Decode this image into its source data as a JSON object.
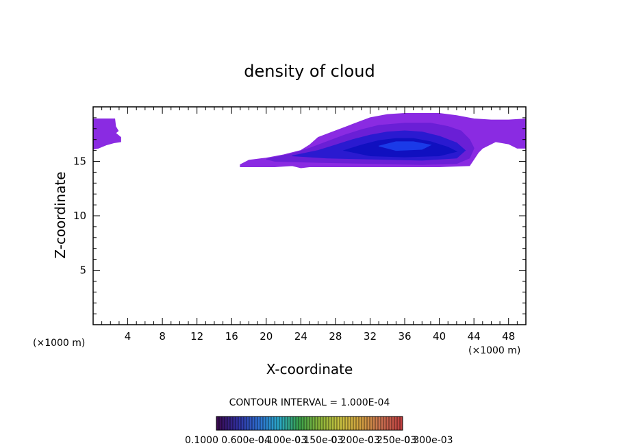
{
  "chart_data": {
    "type": "heatmap",
    "title": "density of cloud",
    "xlabel": "X-coordinate",
    "ylabel": "Z-coordinate",
    "x_unit": "(×1000 m)",
    "x_unit_right": "(×1000 m)",
    "xlim": [
      0,
      50
    ],
    "ylim": [
      0,
      20
    ],
    "x_ticks": [
      "4",
      "8",
      "12",
      "16",
      "20",
      "24",
      "28",
      "32",
      "36",
      "40",
      "44",
      "48"
    ],
    "x_tick_values": [
      4,
      8,
      12,
      16,
      20,
      24,
      28,
      32,
      36,
      40,
      44,
      48
    ],
    "y_ticks": [
      "5",
      "10",
      "15"
    ],
    "y_tick_values": [
      5,
      10,
      15
    ],
    "contour_interval_text": "CONTOUR INTERVAL = 1.000E-04",
    "colorbar_labels": [
      "0.1000",
      "0.600e-04",
      "0.100e-03",
      "0.150e-03",
      "0.200e-03",
      "0.250e-03",
      "0.300e-03"
    ],
    "colorbar_colors": [
      "#3a0a52",
      "#3030a0",
      "#2e6ed0",
      "#2aa8c8",
      "#3aa04a",
      "#8ab43a",
      "#c8c040",
      "#d0a040",
      "#c87050",
      "#c04040"
    ],
    "cloud_regions": [
      {
        "name": "left-edge-cloud",
        "color": "#8a2be2",
        "polygon": [
          [
            0,
            18.9
          ],
          [
            2.5,
            18.9
          ],
          [
            2.6,
            18.2
          ],
          [
            2.9,
            17.8
          ],
          [
            2.6,
            17.6
          ],
          [
            3.2,
            17.2
          ],
          [
            3.2,
            16.8
          ],
          [
            2.4,
            16.7
          ],
          [
            1.5,
            16.5
          ],
          [
            0.6,
            16.2
          ],
          [
            0,
            16.1
          ]
        ]
      },
      {
        "name": "outer-cloud-purple",
        "color": "#8a2be2",
        "polygon": [
          [
            17,
            14.7
          ],
          [
            18,
            15.1
          ],
          [
            20,
            15.3
          ],
          [
            22,
            15.6
          ],
          [
            24,
            16.0
          ],
          [
            25,
            16.5
          ],
          [
            26,
            17.2
          ],
          [
            28,
            17.8
          ],
          [
            30,
            18.4
          ],
          [
            32,
            19.0
          ],
          [
            34,
            19.3
          ],
          [
            36,
            19.4
          ],
          [
            40,
            19.4
          ],
          [
            42,
            19.2
          ],
          [
            44,
            18.9
          ],
          [
            46,
            18.8
          ],
          [
            48,
            18.8
          ],
          [
            50,
            18.9
          ],
          [
            50,
            16.2
          ],
          [
            49,
            16.2
          ],
          [
            48,
            16.6
          ],
          [
            46.5,
            16.8
          ],
          [
            45,
            16.2
          ],
          [
            44.5,
            15.8
          ],
          [
            44,
            15.2
          ],
          [
            43.5,
            14.6
          ],
          [
            40,
            14.5
          ],
          [
            32,
            14.5
          ],
          [
            28,
            14.5
          ],
          [
            25,
            14.5
          ],
          [
            24,
            14.4
          ],
          [
            23,
            14.6
          ],
          [
            21,
            14.5
          ],
          [
            18,
            14.5
          ],
          [
            17,
            14.5
          ]
        ]
      },
      {
        "name": "mid-cloud-violet",
        "color": "#6a1fd6",
        "polygon": [
          [
            20,
            15.2
          ],
          [
            23,
            15.7
          ],
          [
            25,
            16.2
          ],
          [
            27,
            16.8
          ],
          [
            29,
            17.4
          ],
          [
            31,
            17.9
          ],
          [
            33,
            18.3
          ],
          [
            36,
            18.5
          ],
          [
            39,
            18.5
          ],
          [
            41,
            18.2
          ],
          [
            42.5,
            17.8
          ],
          [
            43.5,
            17.0
          ],
          [
            44,
            16.2
          ],
          [
            43.5,
            15.3
          ],
          [
            42,
            14.8
          ],
          [
            38,
            14.7
          ],
          [
            32,
            14.8
          ],
          [
            26,
            14.9
          ],
          [
            21,
            15.0
          ]
        ]
      },
      {
        "name": "inner-cloud-blue",
        "color": "#2a1ad0",
        "polygon": [
          [
            23,
            15.5
          ],
          [
            26,
            16.0
          ],
          [
            28,
            16.5
          ],
          [
            30,
            17.0
          ],
          [
            32,
            17.4
          ],
          [
            34,
            17.7
          ],
          [
            36,
            17.8
          ],
          [
            38,
            17.7
          ],
          [
            40,
            17.3
          ],
          [
            42,
            16.7
          ],
          [
            43,
            16.0
          ],
          [
            42,
            15.3
          ],
          [
            38,
            15.1
          ],
          [
            32,
            15.2
          ],
          [
            27,
            15.3
          ]
        ]
      },
      {
        "name": "core-cloud-dark-blue",
        "color": "#1010c0",
        "polygon": [
          [
            29,
            16.0
          ],
          [
            31,
            16.5
          ],
          [
            33,
            16.9
          ],
          [
            35,
            17.1
          ],
          [
            37,
            17.1
          ],
          [
            39,
            16.8
          ],
          [
            41,
            16.3
          ],
          [
            42,
            15.9
          ],
          [
            40,
            15.5
          ],
          [
            36,
            15.4
          ],
          [
            32,
            15.5
          ]
        ]
      },
      {
        "name": "peak-cloud-bright-blue",
        "color": "#1a3ae8",
        "polygon": [
          [
            33,
            16.4
          ],
          [
            35,
            16.8
          ],
          [
            37,
            16.8
          ],
          [
            39,
            16.5
          ],
          [
            38,
            16.1
          ],
          [
            35,
            16.0
          ]
        ]
      }
    ]
  }
}
